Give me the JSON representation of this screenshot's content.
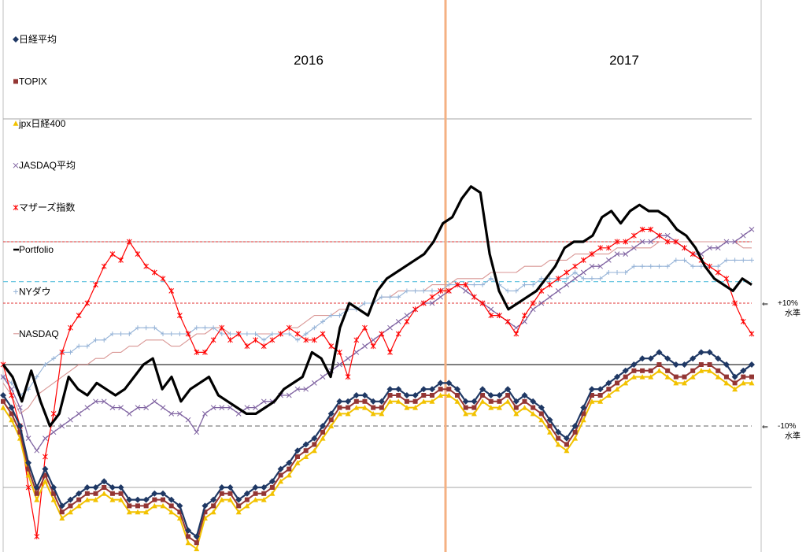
{
  "chart_data": {
    "type": "line",
    "title": "",
    "xlabel": "",
    "ylabel": "",
    "periods": [
      "2016",
      "2017"
    ],
    "ylim": [
      -0.33,
      0.42
    ],
    "reference_lines": [
      {
        "value": 0.2,
        "style": "red-dashed"
      },
      {
        "value": 0.1,
        "style": "red-dashed",
        "label": "+10%\n水準"
      },
      {
        "value": -0.1,
        "style": "gray-dashed",
        "label": "-10%\n水準"
      },
      {
        "value": 0.135,
        "style": "cyan-dashed"
      }
    ],
    "arrow_glyph": "⇐",
    "legend_position": "left",
    "series": [
      {
        "name": "日経平均",
        "color": "#1F3864",
        "marker": "diamond",
        "width": 2.2,
        "values": [
          -0.05,
          -0.07,
          -0.1,
          -0.16,
          -0.2,
          -0.17,
          -0.2,
          -0.23,
          -0.22,
          -0.21,
          -0.2,
          -0.2,
          -0.19,
          -0.2,
          -0.2,
          -0.22,
          -0.22,
          -0.22,
          -0.21,
          -0.21,
          -0.22,
          -0.23,
          -0.27,
          -0.28,
          -0.23,
          -0.22,
          -0.2,
          -0.2,
          -0.22,
          -0.21,
          -0.2,
          -0.2,
          -0.19,
          -0.17,
          -0.16,
          -0.14,
          -0.13,
          -0.12,
          -0.1,
          -0.08,
          -0.06,
          -0.06,
          -0.05,
          -0.05,
          -0.06,
          -0.06,
          -0.04,
          -0.04,
          -0.05,
          -0.05,
          -0.04,
          -0.04,
          -0.03,
          -0.03,
          -0.04,
          -0.06,
          -0.06,
          -0.04,
          -0.05,
          -0.05,
          -0.04,
          -0.06,
          -0.05,
          -0.06,
          -0.07,
          -0.09,
          -0.11,
          -0.12,
          -0.1,
          -0.07,
          -0.04,
          -0.04,
          -0.03,
          -0.02,
          -0.01,
          0.0,
          0.01,
          0.01,
          0.02,
          0.01,
          0.0,
          0.0,
          0.01,
          0.02,
          0.02,
          0.01,
          0.0,
          -0.02,
          -0.01,
          0.0
        ]
      },
      {
        "name": "TOPIX",
        "color": "#943634",
        "marker": "square",
        "width": 2,
        "values": [
          -0.06,
          -0.08,
          -0.11,
          -0.17,
          -0.21,
          -0.18,
          -0.21,
          -0.24,
          -0.23,
          -0.22,
          -0.21,
          -0.21,
          -0.2,
          -0.21,
          -0.21,
          -0.23,
          -0.23,
          -0.23,
          -0.22,
          -0.22,
          -0.23,
          -0.24,
          -0.28,
          -0.29,
          -0.24,
          -0.23,
          -0.21,
          -0.21,
          -0.23,
          -0.22,
          -0.21,
          -0.21,
          -0.2,
          -0.18,
          -0.17,
          -0.15,
          -0.14,
          -0.13,
          -0.11,
          -0.09,
          -0.07,
          -0.07,
          -0.06,
          -0.06,
          -0.07,
          -0.07,
          -0.05,
          -0.05,
          -0.06,
          -0.06,
          -0.05,
          -0.05,
          -0.04,
          -0.04,
          -0.05,
          -0.07,
          -0.07,
          -0.05,
          -0.06,
          -0.06,
          -0.05,
          -0.07,
          -0.06,
          -0.07,
          -0.08,
          -0.1,
          -0.12,
          -0.13,
          -0.11,
          -0.08,
          -0.05,
          -0.05,
          -0.04,
          -0.03,
          -0.02,
          -0.01,
          -0.01,
          -0.01,
          0.0,
          -0.01,
          -0.02,
          -0.02,
          -0.01,
          0.0,
          0.0,
          -0.01,
          -0.02,
          -0.03,
          -0.02,
          -0.02
        ]
      },
      {
        "name": "jpx日経400",
        "color": "#F2C200",
        "marker": "triangle",
        "width": 2,
        "values": [
          -0.07,
          -0.09,
          -0.12,
          -0.18,
          -0.22,
          -0.19,
          -0.22,
          -0.25,
          -0.24,
          -0.23,
          -0.22,
          -0.22,
          -0.21,
          -0.22,
          -0.22,
          -0.24,
          -0.24,
          -0.24,
          -0.23,
          -0.23,
          -0.24,
          -0.25,
          -0.29,
          -0.3,
          -0.25,
          -0.24,
          -0.22,
          -0.22,
          -0.24,
          -0.23,
          -0.22,
          -0.22,
          -0.21,
          -0.19,
          -0.18,
          -0.16,
          -0.15,
          -0.14,
          -0.12,
          -0.1,
          -0.08,
          -0.08,
          -0.07,
          -0.07,
          -0.08,
          -0.08,
          -0.06,
          -0.06,
          -0.07,
          -0.07,
          -0.06,
          -0.06,
          -0.05,
          -0.05,
          -0.06,
          -0.08,
          -0.08,
          -0.06,
          -0.07,
          -0.07,
          -0.06,
          -0.08,
          -0.07,
          -0.08,
          -0.09,
          -0.11,
          -0.13,
          -0.14,
          -0.12,
          -0.09,
          -0.06,
          -0.06,
          -0.05,
          -0.04,
          -0.03,
          -0.02,
          -0.02,
          -0.02,
          -0.01,
          -0.02,
          -0.03,
          -0.03,
          -0.02,
          -0.01,
          -0.01,
          -0.02,
          -0.03,
          -0.04,
          -0.03,
          -0.03
        ]
      },
      {
        "name": "JASDAQ平均",
        "color": "#8064A2",
        "marker": "x",
        "width": 1.3,
        "values": [
          -0.02,
          -0.04,
          -0.07,
          -0.12,
          -0.14,
          -0.12,
          -0.11,
          -0.1,
          -0.09,
          -0.08,
          -0.07,
          -0.06,
          -0.06,
          -0.07,
          -0.07,
          -0.08,
          -0.07,
          -0.07,
          -0.06,
          -0.07,
          -0.08,
          -0.08,
          -0.09,
          -0.11,
          -0.08,
          -0.07,
          -0.07,
          -0.07,
          -0.08,
          -0.07,
          -0.07,
          -0.06,
          -0.06,
          -0.05,
          -0.05,
          -0.04,
          -0.04,
          -0.03,
          -0.02,
          -0.01,
          0.0,
          0.01,
          0.02,
          0.03,
          0.04,
          0.05,
          0.06,
          0.07,
          0.08,
          0.09,
          0.1,
          0.1,
          0.11,
          0.12,
          0.13,
          0.12,
          0.11,
          0.1,
          0.09,
          0.08,
          0.07,
          0.06,
          0.07,
          0.09,
          0.1,
          0.11,
          0.12,
          0.13,
          0.14,
          0.15,
          0.16,
          0.16,
          0.17,
          0.18,
          0.18,
          0.19,
          0.2,
          0.2,
          0.21,
          0.21,
          0.2,
          0.19,
          0.18,
          0.18,
          0.19,
          0.19,
          0.2,
          0.2,
          0.21,
          0.22
        ]
      },
      {
        "name": "マザーズ指数",
        "color": "#FF0000",
        "marker": "asterisk",
        "width": 1.2,
        "values": [
          0.0,
          -0.05,
          -0.1,
          -0.2,
          -0.28,
          -0.15,
          -0.08,
          0.02,
          0.06,
          0.08,
          0.1,
          0.13,
          0.16,
          0.18,
          0.17,
          0.2,
          0.18,
          0.16,
          0.15,
          0.14,
          0.12,
          0.08,
          0.05,
          0.02,
          0.02,
          0.04,
          0.06,
          0.04,
          0.05,
          0.03,
          0.04,
          0.03,
          0.04,
          0.05,
          0.06,
          0.05,
          0.04,
          0.04,
          0.05,
          0.03,
          0.02,
          -0.02,
          0.04,
          0.06,
          0.03,
          0.05,
          0.02,
          0.05,
          0.07,
          0.09,
          0.1,
          0.11,
          0.12,
          0.12,
          0.13,
          0.13,
          0.11,
          0.1,
          0.08,
          0.08,
          0.07,
          0.05,
          0.08,
          0.1,
          0.12,
          0.13,
          0.14,
          0.15,
          0.16,
          0.17,
          0.18,
          0.19,
          0.19,
          0.2,
          0.2,
          0.21,
          0.22,
          0.22,
          0.21,
          0.2,
          0.2,
          0.19,
          0.18,
          0.17,
          0.16,
          0.15,
          0.14,
          0.1,
          0.07,
          0.05
        ]
      },
      {
        "name": "Portfolio",
        "color": "#000000",
        "marker": "none",
        "width": 3.2,
        "values": [
          0.0,
          -0.02,
          -0.06,
          -0.01,
          -0.06,
          -0.1,
          -0.08,
          -0.02,
          -0.04,
          -0.05,
          -0.03,
          -0.04,
          -0.05,
          -0.04,
          -0.02,
          0.0,
          0.01,
          -0.04,
          -0.02,
          -0.06,
          -0.04,
          -0.03,
          -0.02,
          -0.05,
          -0.06,
          -0.07,
          -0.08,
          -0.08,
          -0.07,
          -0.06,
          -0.04,
          -0.03,
          -0.02,
          0.02,
          0.01,
          -0.02,
          0.06,
          0.1,
          0.09,
          0.08,
          0.12,
          0.14,
          0.15,
          0.16,
          0.17,
          0.18,
          0.2,
          0.23,
          0.24,
          0.27,
          0.29,
          0.28,
          0.18,
          0.12,
          0.09,
          0.1,
          0.11,
          0.12,
          0.14,
          0.16,
          0.19,
          0.2,
          0.2,
          0.21,
          0.24,
          0.25,
          0.23,
          0.25,
          0.26,
          0.25,
          0.25,
          0.24,
          0.22,
          0.21,
          0.19,
          0.16,
          0.14,
          0.13,
          0.12,
          0.14,
          0.13
        ]
      },
      {
        "name": "NYダウ",
        "color": "#95B3D7",
        "marker": "plus",
        "width": 1.1,
        "values": [
          -0.02,
          -0.03,
          -0.05,
          -0.04,
          -0.02,
          0.0,
          0.01,
          0.02,
          0.02,
          0.03,
          0.03,
          0.04,
          0.04,
          0.05,
          0.05,
          0.05,
          0.06,
          0.06,
          0.06,
          0.05,
          0.05,
          0.05,
          0.05,
          0.06,
          0.06,
          0.06,
          0.05,
          0.05,
          0.05,
          0.05,
          0.05,
          0.04,
          0.05,
          0.05,
          0.05,
          0.04,
          0.05,
          0.06,
          0.07,
          0.08,
          0.08,
          0.09,
          0.09,
          0.1,
          0.1,
          0.11,
          0.11,
          0.11,
          0.12,
          0.12,
          0.12,
          0.12,
          0.12,
          0.13,
          0.13,
          0.13,
          0.13,
          0.13,
          0.14,
          0.13,
          0.12,
          0.12,
          0.13,
          0.13,
          0.14,
          0.14,
          0.14,
          0.14,
          0.15,
          0.14,
          0.14,
          0.14,
          0.15,
          0.15,
          0.15,
          0.16,
          0.16,
          0.16,
          0.16,
          0.16,
          0.17,
          0.17,
          0.16,
          0.16,
          0.16,
          0.16,
          0.17,
          0.17,
          0.17,
          0.17
        ]
      },
      {
        "name": "NASDAQ",
        "color": "#D99694",
        "marker": "none",
        "width": 1.1,
        "values": [
          -0.03,
          -0.05,
          -0.08,
          -0.07,
          -0.05,
          -0.04,
          -0.03,
          -0.02,
          -0.01,
          0.0,
          0.0,
          0.01,
          0.01,
          0.02,
          0.02,
          0.03,
          0.03,
          0.04,
          0.04,
          0.04,
          0.03,
          0.03,
          0.04,
          0.05,
          0.05,
          0.06,
          0.06,
          0.05,
          0.05,
          0.05,
          0.05,
          0.05,
          0.05,
          0.05,
          0.06,
          0.06,
          0.07,
          0.08,
          0.08,
          0.08,
          0.09,
          0.09,
          0.09,
          0.1,
          0.1,
          0.11,
          0.11,
          0.12,
          0.12,
          0.12,
          0.12,
          0.13,
          0.13,
          0.13,
          0.14,
          0.14,
          0.14,
          0.14,
          0.15,
          0.15,
          0.15,
          0.15,
          0.16,
          0.16,
          0.16,
          0.17,
          0.17,
          0.17,
          0.18,
          0.18,
          0.18,
          0.18,
          0.18,
          0.19,
          0.19,
          0.19,
          0.19,
          0.19,
          0.2,
          0.2,
          0.2,
          0.2,
          0.2,
          0.2,
          0.2,
          0.2,
          0.2,
          0.2,
          0.19,
          0.19
        ]
      }
    ]
  }
}
